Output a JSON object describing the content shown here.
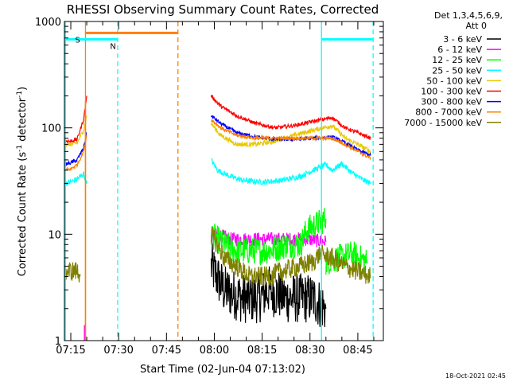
{
  "chart_data": {
    "type": "line",
    "title": "RHESSI Observing Summary Count Rates, Corrected",
    "xlabel": "Start Time (02-Jun-04 07:13:02)",
    "ylabel": "Corrected Count Rate (s-1 detector-1)",
    "ylabel_parts": [
      "Corrected Count Rate (s",
      "-1",
      " detector",
      "-1",
      ")"
    ],
    "x_range_min": [
      2,
      102
    ],
    "y_range": [
      1,
      1000
    ],
    "y_scale": "log",
    "x_ticks": [
      {
        "t": 4,
        "label": "07:15"
      },
      {
        "t": 19,
        "label": "07:30"
      },
      {
        "t": 34,
        "label": "07:45"
      },
      {
        "t": 49,
        "label": "08:00"
      },
      {
        "t": 64,
        "label": "08:15"
      },
      {
        "t": 79,
        "label": "08:30"
      },
      {
        "t": 94,
        "label": "08:45"
      }
    ],
    "y_ticks": [
      {
        "v": 1,
        "label": "1"
      },
      {
        "v": 10,
        "label": "10"
      },
      {
        "v": 100,
        "label": "100"
      },
      {
        "v": 1000,
        "label": "1000"
      }
    ],
    "legend": {
      "header": [
        "Det 1,3,4,5,6,9,",
        "Att 0"
      ],
      "entries": [
        {
          "label": "3 - 6 keV",
          "color": "#000000"
        },
        {
          "label": "6 - 12 keV",
          "color": "#ff00ff"
        },
        {
          "label": "12 - 25 keV",
          "color": "#00ff00"
        },
        {
          "label": "25 - 50 keV",
          "color": "#00ffff"
        },
        {
          "label": "50 - 100 keV",
          "color": "#e8c800"
        },
        {
          "label": "100 - 300 keV",
          "color": "#ff0000"
        },
        {
          "label": "300 - 800 keV",
          "color": "#0000ff"
        },
        {
          "label": "800 - 7000 keV",
          "color": "#ff8000"
        },
        {
          "label": "7000 - 15000 keV",
          "color": "#808000"
        }
      ]
    },
    "series": [
      {
        "name": "3 - 6 keV",
        "color": "#000000",
        "noise": 0.55,
        "segments": [
          [
            [
              48,
              5
            ],
            [
              52,
              3
            ],
            [
              58,
              2.5
            ],
            [
              63,
              2.5
            ],
            [
              66,
              3
            ],
            [
              72,
              2.5
            ],
            [
              80,
              2.5
            ],
            [
              84,
              2
            ]
          ]
        ]
      },
      {
        "name": "6 - 12 keV",
        "color": "#ff00ff",
        "noise": 0.15,
        "segments": [
          [
            [
              48,
              9
            ],
            [
              50,
              10
            ],
            [
              54,
              9
            ],
            [
              60,
              9
            ],
            [
              66,
              9
            ],
            [
              72,
              9
            ],
            [
              78,
              9
            ],
            [
              84,
              8.5
            ]
          ]
        ]
      },
      {
        "name": "12 - 25 keV",
        "color": "#00ff00",
        "noise": 0.3,
        "segments": [
          [
            [
              48,
              10
            ],
            [
              52,
              8
            ],
            [
              56,
              7
            ],
            [
              60,
              7
            ],
            [
              66,
              7
            ],
            [
              72,
              8
            ],
            [
              76,
              8
            ],
            [
              78,
              11
            ],
            [
              84,
              14
            ]
          ],
          [
            [
              84,
              5.5
            ],
            [
              92,
              6.5
            ],
            [
              97,
              5.5
            ]
          ]
        ]
      },
      {
        "name": "25 - 50 keV",
        "color": "#00ffff",
        "noise": 0.06,
        "segments": [
          [
            [
              2,
              30
            ],
            [
              4,
              31
            ],
            [
              6,
              33
            ],
            [
              8,
              37
            ],
            [
              9,
              30
            ]
          ],
          [
            [
              48,
              50
            ],
            [
              50,
              40
            ],
            [
              54,
              35
            ],
            [
              58,
              32
            ],
            [
              64,
              31
            ],
            [
              70,
              32
            ],
            [
              76,
              35
            ],
            [
              80,
              40
            ],
            [
              84,
              45
            ],
            [
              86,
              40
            ],
            [
              89,
              46
            ],
            [
              92,
              38
            ],
            [
              96,
              32
            ],
            [
              98,
              30
            ]
          ]
        ]
      },
      {
        "name": "50 - 100 keV",
        "color": "#e8c800",
        "noise": 0.05,
        "segments": [
          [
            [
              2,
              70
            ],
            [
              4,
              70
            ],
            [
              6,
              72
            ],
            [
              8,
              95
            ],
            [
              9,
              130
            ]
          ],
          [
            [
              48,
              110
            ],
            [
              51,
              85
            ],
            [
              56,
              70
            ],
            [
              62,
              70
            ],
            [
              68,
              75
            ],
            [
              74,
              85
            ],
            [
              80,
              95
            ],
            [
              86,
              105
            ],
            [
              90,
              80
            ],
            [
              94,
              70
            ],
            [
              98,
              60
            ]
          ]
        ]
      },
      {
        "name": "100 - 300 keV",
        "color": "#ff0000",
        "noise": 0.04,
        "segments": [
          [
            [
              2,
              75
            ],
            [
              4,
              75
            ],
            [
              6,
              78
            ],
            [
              8,
              120
            ],
            [
              9,
              200
            ]
          ],
          [
            [
              48,
              200
            ],
            [
              51,
              160
            ],
            [
              56,
              130
            ],
            [
              62,
              110
            ],
            [
              68,
              100
            ],
            [
              74,
              105
            ],
            [
              80,
              115
            ],
            [
              86,
              125
            ],
            [
              90,
              100
            ],
            [
              94,
              90
            ],
            [
              98,
              80
            ]
          ]
        ]
      },
      {
        "name": "300 - 800 keV",
        "color": "#0000ff",
        "noise": 0.04,
        "segments": [
          [
            [
              2,
              45
            ],
            [
              4,
              47
            ],
            [
              6,
              50
            ],
            [
              8,
              65
            ],
            [
              9,
              90
            ]
          ],
          [
            [
              48,
              130
            ],
            [
              51,
              110
            ],
            [
              56,
              90
            ],
            [
              62,
              82
            ],
            [
              68,
              78
            ],
            [
              74,
              78
            ],
            [
              80,
              80
            ],
            [
              86,
              82
            ],
            [
              90,
              72
            ],
            [
              94,
              62
            ],
            [
              98,
              55
            ]
          ]
        ]
      },
      {
        "name": "800 - 7000 keV",
        "color": "#ff8000",
        "noise": 0.04,
        "segments": [
          [
            [
              2,
              40
            ],
            [
              4,
              41
            ],
            [
              6,
              45
            ],
            [
              8,
              60
            ],
            [
              9,
              85
            ]
          ],
          [
            [
              48,
              120
            ],
            [
              51,
              100
            ],
            [
              56,
              85
            ],
            [
              62,
              80
            ],
            [
              68,
              80
            ],
            [
              74,
              80
            ],
            [
              80,
              80
            ],
            [
              86,
              80
            ],
            [
              90,
              70
            ],
            [
              94,
              60
            ],
            [
              98,
              52
            ]
          ]
        ]
      },
      {
        "name": "7000 - 15000 keV",
        "color": "#808000",
        "noise": 0.22,
        "segments": [
          [
            [
              2,
              4.5
            ],
            [
              4,
              4.5
            ],
            [
              6,
              4.5
            ],
            [
              7,
              4.2
            ]
          ],
          [
            [
              48,
              10
            ],
            [
              50,
              8
            ],
            [
              52,
              6
            ],
            [
              56,
              5
            ],
            [
              60,
              4
            ],
            [
              66,
              4
            ],
            [
              70,
              4.5
            ],
            [
              76,
              5
            ],
            [
              80,
              5.5
            ],
            [
              82,
              6.5
            ],
            [
              86,
              6
            ],
            [
              90,
              5
            ],
            [
              96,
              4.2
            ],
            [
              98,
              4
            ]
          ]
        ]
      }
    ],
    "vlines": [
      {
        "t": 2.3,
        "color": "#00ffff",
        "style": "solid",
        "label": ""
      },
      {
        "t": 8.6,
        "color": "#ff8000",
        "style": "solid",
        "label": ""
      },
      {
        "t": 18.7,
        "color": "#00ffff",
        "style": "dashed",
        "label": ""
      },
      {
        "t": 37.6,
        "color": "#ff8000",
        "style": "dashed",
        "label": ""
      },
      {
        "t": 82.6,
        "color": "#00ffff",
        "style": "solid",
        "label": ""
      },
      {
        "t": 98.8,
        "color": "#00ffff",
        "style": "dashed",
        "label": ""
      }
    ],
    "spikes": [
      {
        "t": 8.3,
        "from": 1,
        "to": 1.4,
        "color": "#ff00ff"
      },
      {
        "t": 8.6,
        "from": 1,
        "to": 180,
        "color": "#ff8000"
      }
    ],
    "bars": [
      {
        "t0": 2.3,
        "t1": 18.7,
        "v": 680,
        "color": "#00ffff",
        "label": "N"
      },
      {
        "t0": 8.6,
        "t1": 37.6,
        "v": 780,
        "color": "#ff8000",
        "label": "S"
      },
      {
        "t0": 82.6,
        "t1": 98.8,
        "v": 680,
        "color": "#00ffff",
        "label": ""
      }
    ],
    "timestamp": "18-Oct-2021 02:45"
  }
}
